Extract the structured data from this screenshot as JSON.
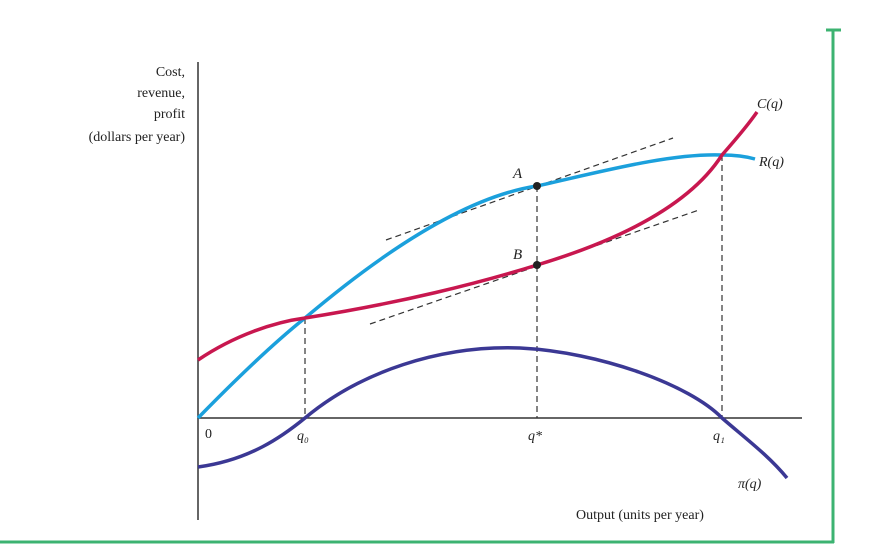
{
  "y_axis_label_lines": [
    "Cost,",
    "revenue,",
    "profit",
    "(dollars per year)"
  ],
  "x_axis_label": "Output (units per year)",
  "origin_label": "0",
  "tick_labels": {
    "q0": "q₀",
    "qstar": "q*",
    "q1": "q₁"
  },
  "curve_labels": {
    "cost": "C(q)",
    "revenue": "R(q)",
    "profit": "π(q)"
  },
  "point_labels": {
    "a": "A",
    "b": "B"
  },
  "colors": {
    "cost_curve": "#c8174f",
    "revenue_curve": "#1ba0dc",
    "profit_curve": "#3b3894",
    "frame_border": "#3cb371",
    "axis": "#333333",
    "dashed": "#333333"
  }
}
